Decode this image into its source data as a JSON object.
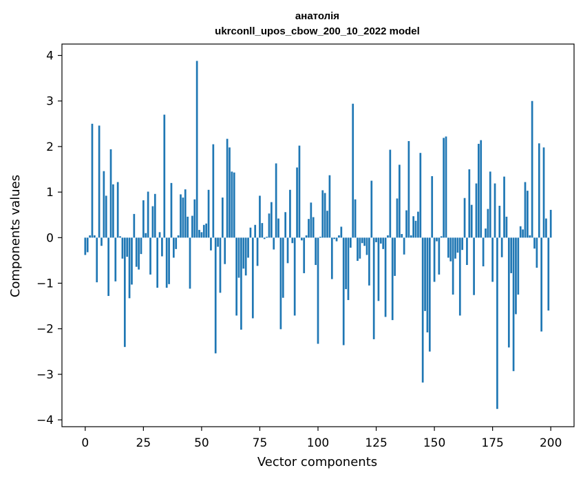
{
  "chart_data": {
    "type": "bar",
    "title": "анатолія",
    "subtitle": "ukrconll_upos_cbow_200_10_2022 model",
    "xlabel": "Vector components",
    "ylabel": "Components values",
    "xlim": [
      -10,
      210
    ],
    "ylim": [
      -4.15,
      4.25
    ],
    "xticks": [
      0,
      25,
      50,
      75,
      100,
      125,
      150,
      175,
      200
    ],
    "xtick_labels": [
      "0",
      "25",
      "50",
      "75",
      "100",
      "125",
      "150",
      "175",
      "200"
    ],
    "yticks": [
      4,
      3,
      2,
      1,
      0,
      -1,
      -2,
      -3,
      -4
    ],
    "ytick_labels": [
      "4",
      "3",
      "2",
      "1",
      "0",
      "−1",
      "−2",
      "−3",
      "−4"
    ],
    "bar_color": "#1f77b4",
    "grid": false,
    "values": [
      -0.38,
      -0.32,
      0.05,
      2.5,
      0.05,
      -0.98,
      2.46,
      -0.18,
      1.46,
      0.92,
      -1.28,
      1.94,
      1.17,
      -0.96,
      1.22,
      0.03,
      -0.46,
      -2.4,
      -0.42,
      -1.33,
      -1.03,
      0.52,
      -0.64,
      -0.7,
      -0.36,
      0.82,
      0.1,
      1.01,
      -0.81,
      0.69,
      0.96,
      -1.1,
      0.12,
      -0.41,
      2.7,
      -1.1,
      -1.02,
      1.2,
      -0.44,
      -0.25,
      0.05,
      0.95,
      0.88,
      1.06,
      0.46,
      -1.12,
      0.48,
      0.84,
      3.88,
      0.17,
      0.12,
      0.28,
      0.31,
      1.05,
      -0.28,
      2.05,
      -2.54,
      -0.2,
      -1.21,
      0.88,
      -0.58,
      2.17,
      1.98,
      1.45,
      1.43,
      -1.71,
      -0.88,
      -2.02,
      -0.68,
      -0.83,
      -0.44,
      0.22,
      -1.77,
      0.28,
      -0.62,
      0.92,
      0.32,
      -0.03,
      0.02,
      0.53,
      0.78,
      -0.26,
      1.63,
      0.42,
      -2.01,
      -1.32,
      0.56,
      -0.56,
      1.05,
      -0.12,
      -1.71,
      1.54,
      2.02,
      -0.06,
      -0.78,
      0.05,
      0.41,
      0.77,
      0.45,
      -0.6,
      -2.33,
      0.02,
      1.04,
      0.98,
      0.59,
      1.37,
      -0.91,
      -0.03,
      -0.08,
      0.05,
      0.24,
      -2.36,
      -1.13,
      -1.37,
      -0.22,
      2.94,
      0.84,
      -0.51,
      -0.46,
      -0.12,
      -0.18,
      -0.38,
      -1.05,
      1.25,
      -2.23,
      -0.1,
      -1.39,
      -0.13,
      -0.25,
      -1.74,
      0.05,
      1.93,
      -1.81,
      -0.84,
      0.86,
      1.6,
      0.08,
      -0.37,
      0.6,
      2.12,
      0.05,
      0.47,
      0.37,
      0.57,
      1.86,
      -3.18,
      -1.61,
      -2.08,
      -2.5,
      1.35,
      -0.97,
      -0.08,
      -0.81,
      0.03,
      2.19,
      2.22,
      -0.44,
      -0.52,
      -1.25,
      -0.46,
      -0.33,
      -1.71,
      -0.27,
      0.87,
      -0.6,
      1.5,
      0.72,
      -1.26,
      1.19,
      2.06,
      2.14,
      -0.63,
      0.2,
      0.63,
      1.45,
      -0.97,
      1.19,
      -3.76,
      0.7,
      -0.43,
      1.34,
      0.46,
      -2.41,
      -0.78,
      -2.93,
      -1.68,
      -1.25,
      0.25,
      0.18,
      1.22,
      1.03,
      0.05,
      3.0,
      -0.24,
      -0.66,
      2.07,
      -2.06,
      1.98,
      0.42,
      -1.6,
      0.61
    ]
  }
}
